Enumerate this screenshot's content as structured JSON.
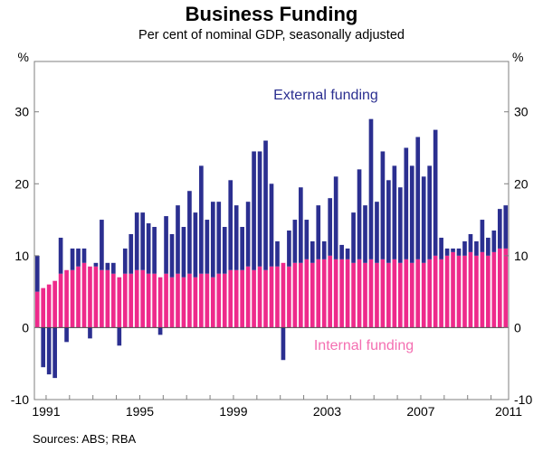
{
  "page": {
    "title": "Business Funding",
    "subtitle": "Per cent of nominal GDP, seasonally adjusted",
    "sources": "Sources: ABS; RBA",
    "ylabel_left": "%",
    "ylabel_right": "%"
  },
  "annotations": {
    "external": "External funding",
    "internal": "Internal funding"
  },
  "chart_data": {
    "type": "bar",
    "stacked": true,
    "title": "Business Funding",
    "subtitle": "Per cent of nominal GDP, seasonally adjusted",
    "xlabel": "",
    "ylabel": "Per cent of nominal GDP",
    "ylim": [
      -10,
      37
    ],
    "yticks": [
      -10,
      0,
      10,
      20,
      30
    ],
    "x_tick_years": [
      1991,
      1995,
      1999,
      2003,
      2007,
      2011
    ],
    "grid": false,
    "legend_position": "in-plot annotations",
    "frequency": "quarterly",
    "quarters": [
      "1991Q1",
      "1991Q2",
      "1991Q3",
      "1991Q4",
      "1992Q1",
      "1992Q2",
      "1992Q3",
      "1992Q4",
      "1993Q1",
      "1993Q2",
      "1993Q3",
      "1993Q4",
      "1994Q1",
      "1994Q2",
      "1994Q3",
      "1994Q4",
      "1995Q1",
      "1995Q2",
      "1995Q3",
      "1995Q4",
      "1996Q1",
      "1996Q2",
      "1996Q3",
      "1996Q4",
      "1997Q1",
      "1997Q2",
      "1997Q3",
      "1997Q4",
      "1998Q1",
      "1998Q2",
      "1998Q3",
      "1998Q4",
      "1999Q1",
      "1999Q2",
      "1999Q3",
      "1999Q4",
      "2000Q1",
      "2000Q2",
      "2000Q3",
      "2000Q4",
      "2001Q1",
      "2001Q2",
      "2001Q3",
      "2001Q4",
      "2002Q1",
      "2002Q2",
      "2002Q3",
      "2002Q4",
      "2003Q1",
      "2003Q2",
      "2003Q3",
      "2003Q4",
      "2004Q1",
      "2004Q2",
      "2004Q3",
      "2004Q4",
      "2005Q1",
      "2005Q2",
      "2005Q3",
      "2005Q4",
      "2006Q1",
      "2006Q2",
      "2006Q3",
      "2006Q4",
      "2007Q1",
      "2007Q2",
      "2007Q3",
      "2007Q4",
      "2008Q1",
      "2008Q2",
      "2008Q3",
      "2008Q4",
      "2009Q1",
      "2009Q2",
      "2009Q3",
      "2009Q4",
      "2010Q1",
      "2010Q2",
      "2010Q3",
      "2010Q4",
      "2011Q1"
    ],
    "series": [
      {
        "name": "Internal funding",
        "color": "#ee2a8b",
        "values": [
          5.0,
          5.5,
          6.0,
          6.5,
          7.5,
          8.0,
          8.0,
          8.5,
          9.0,
          8.5,
          8.5,
          8.0,
          8.0,
          7.5,
          7.0,
          7.5,
          7.5,
          8.0,
          8.0,
          7.5,
          7.5,
          7.0,
          7.5,
          7.0,
          7.5,
          7.0,
          7.5,
          7.0,
          7.5,
          7.5,
          7.0,
          7.5,
          7.5,
          8.0,
          8.0,
          8.0,
          8.5,
          8.0,
          8.5,
          8.0,
          8.5,
          8.5,
          9.0,
          8.5,
          9.0,
          9.0,
          9.5,
          9.0,
          9.5,
          9.5,
          10.0,
          9.5,
          9.5,
          9.5,
          9.0,
          9.5,
          9.0,
          9.5,
          9.0,
          9.5,
          9.0,
          9.5,
          9.0,
          9.5,
          9.0,
          9.5,
          9.0,
          9.5,
          10.0,
          9.5,
          10.0,
          10.5,
          10.0,
          10.0,
          10.5,
          10.0,
          10.5,
          10.0,
          10.5,
          11.0,
          11.0
        ]
      },
      {
        "name": "External funding",
        "color": "#2b2f90",
        "values": [
          5.0,
          -5.5,
          -6.5,
          -7.0,
          5.0,
          -2.0,
          3.0,
          2.5,
          2.0,
          -1.5,
          0.5,
          7.0,
          1.0,
          1.5,
          -2.5,
          3.5,
          5.5,
          8.0,
          8.0,
          7.0,
          6.5,
          -1.0,
          8.0,
          6.0,
          9.5,
          7.0,
          11.5,
          9.0,
          15.0,
          7.5,
          10.5,
          10.0,
          6.5,
          12.5,
          9.0,
          6.0,
          9.0,
          16.5,
          16.0,
          18.0,
          11.5,
          3.5,
          -4.5,
          5.0,
          6.0,
          10.5,
          5.5,
          3.0,
          7.5,
          2.5,
          8.0,
          11.5,
          2.0,
          1.5,
          7.0,
          12.5,
          8.0,
          19.5,
          8.5,
          15.0,
          11.5,
          13.0,
          10.5,
          15.5,
          13.5,
          17.0,
          12.0,
          13.0,
          17.5,
          3.0,
          1.0,
          0.5,
          1.0,
          2.0,
          2.5,
          2.0,
          4.5,
          2.5,
          3.0,
          5.5,
          6.0
        ]
      }
    ]
  }
}
